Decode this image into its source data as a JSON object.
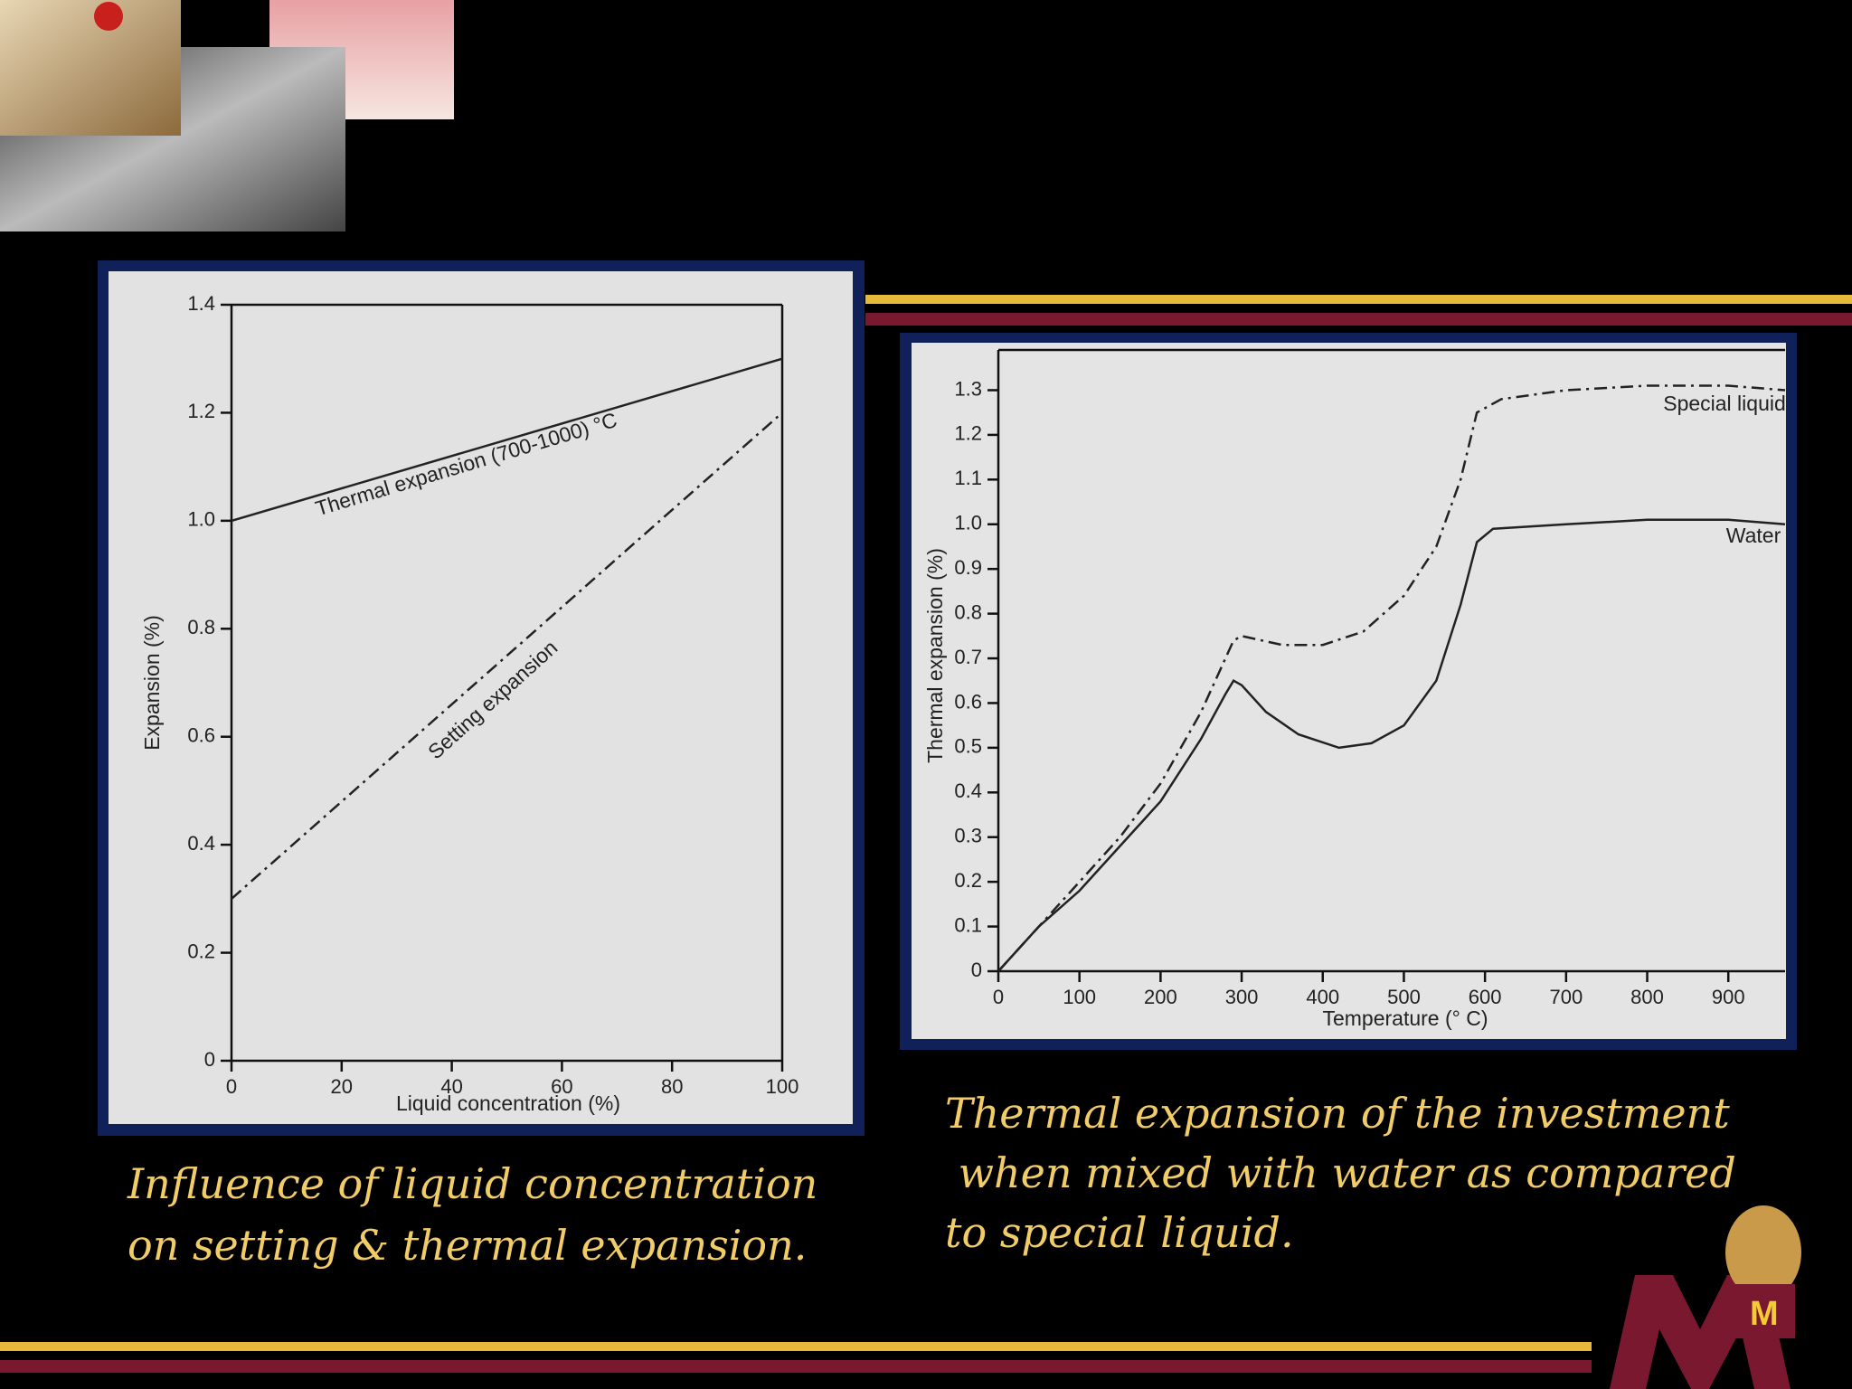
{
  "chart_data": [
    {
      "type": "line",
      "caption": "Influence of liquid concentration\non setting & thermal expansion.",
      "xlabel": "Liquid concentration (%)",
      "ylabel": "Expansion (%)",
      "x": [
        0,
        100
      ],
      "xlim": [
        0,
        100
      ],
      "xticks": [
        0,
        20,
        40,
        60,
        80,
        100
      ],
      "ylim": [
        0,
        1.4
      ],
      "yticks": [
        0,
        0.2,
        0.4,
        0.6,
        0.8,
        {
          "value": 1,
          "label": "1.0"
        },
        1.2,
        1.4
      ],
      "series": [
        {
          "name": "Thermal expansion (700-1000) °C",
          "color": "#222222",
          "dash": "solid",
          "values": [
            1.0,
            1.3
          ]
        },
        {
          "name": "Setting expansion",
          "color": "#222222",
          "dash": "dashdot",
          "values": [
            0.3,
            1.2
          ]
        }
      ]
    },
    {
      "type": "line",
      "caption": "Thermal expansion of the investment\n when mixed with water as compared\nto special liquid.",
      "xlabel": "Temperature (° C)",
      "ylabel": "Thermal expansion (%)",
      "xlim": [
        0,
        970
      ],
      "xticks": [
        0,
        100,
        200,
        300,
        400,
        500,
        600,
        700,
        800,
        900
      ],
      "ylim": [
        0,
        1.39
      ],
      "yticks": [
        0,
        0.1,
        0.2,
        0.3,
        0.4,
        0.5,
        0.6,
        0.7,
        0.8,
        0.9,
        {
          "value": 1,
          "label": "1.0"
        },
        1.1,
        1.2,
        1.3
      ],
      "series": [
        {
          "name": "Special liquid",
          "color": "#222222",
          "dash": "dashdot",
          "x": [
            0,
            50,
            100,
            150,
            200,
            250,
            290,
            300,
            350,
            400,
            450,
            500,
            540,
            570,
            590,
            620,
            700,
            800,
            900,
            970
          ],
          "values": [
            0,
            0.1,
            0.2,
            0.3,
            0.42,
            0.58,
            0.74,
            0.75,
            0.73,
            0.73,
            0.76,
            0.84,
            0.95,
            1.1,
            1.25,
            1.28,
            1.3,
            1.31,
            1.31,
            1.3
          ]
        },
        {
          "name": "Water",
          "color": "#222222",
          "dash": "solid",
          "x": [
            0,
            50,
            100,
            150,
            200,
            250,
            280,
            290,
            300,
            330,
            370,
            420,
            460,
            500,
            540,
            570,
            590,
            610,
            700,
            800,
            900,
            970
          ],
          "values": [
            0,
            0.1,
            0.18,
            0.28,
            0.38,
            0.52,
            0.62,
            0.65,
            0.64,
            0.58,
            0.53,
            0.5,
            0.51,
            0.55,
            0.65,
            0.82,
            0.96,
            0.99,
            1.0,
            1.01,
            1.01,
            1.0
          ]
        }
      ]
    }
  ]
}
